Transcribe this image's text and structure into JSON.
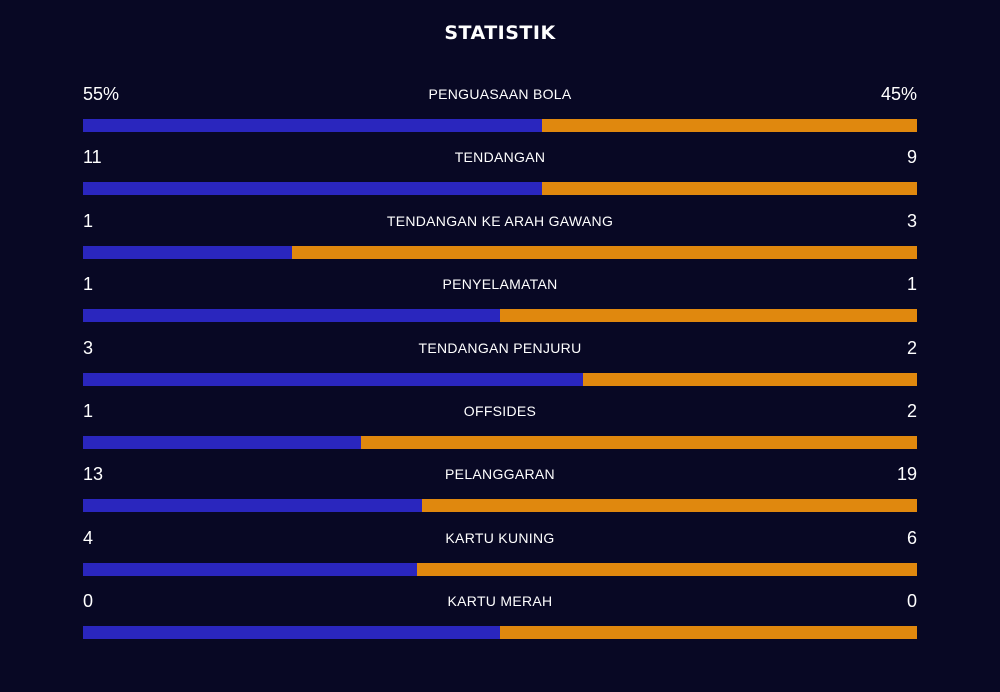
{
  "title": "STATISTIK",
  "colors": {
    "home": "#2a26be",
    "away": "#e0880e",
    "background": "#080824"
  },
  "stats": [
    {
      "label": "PENGUASAAN BOLA",
      "home": "55%",
      "away": "45%",
      "home_share": 0.55
    },
    {
      "label": "TENDANGAN",
      "home": "11",
      "away": "9",
      "home_share": 0.55
    },
    {
      "label": "TENDANGAN KE ARAH GAWANG",
      "home": "1",
      "away": "3",
      "home_share": 0.25
    },
    {
      "label": "PENYELAMATAN",
      "home": "1",
      "away": "1",
      "home_share": 0.5
    },
    {
      "label": "TENDANGAN PENJURU",
      "home": "3",
      "away": "2",
      "home_share": 0.6
    },
    {
      "label": "OFFSIDES",
      "home": "1",
      "away": "2",
      "home_share": 0.3333
    },
    {
      "label": "PELANGGARAN",
      "home": "13",
      "away": "19",
      "home_share": 0.40625
    },
    {
      "label": "KARTU KUNING",
      "home": "4",
      "away": "6",
      "home_share": 0.4
    },
    {
      "label": "KARTU MERAH",
      "home": "0",
      "away": "0",
      "home_share": 0.5
    }
  ]
}
